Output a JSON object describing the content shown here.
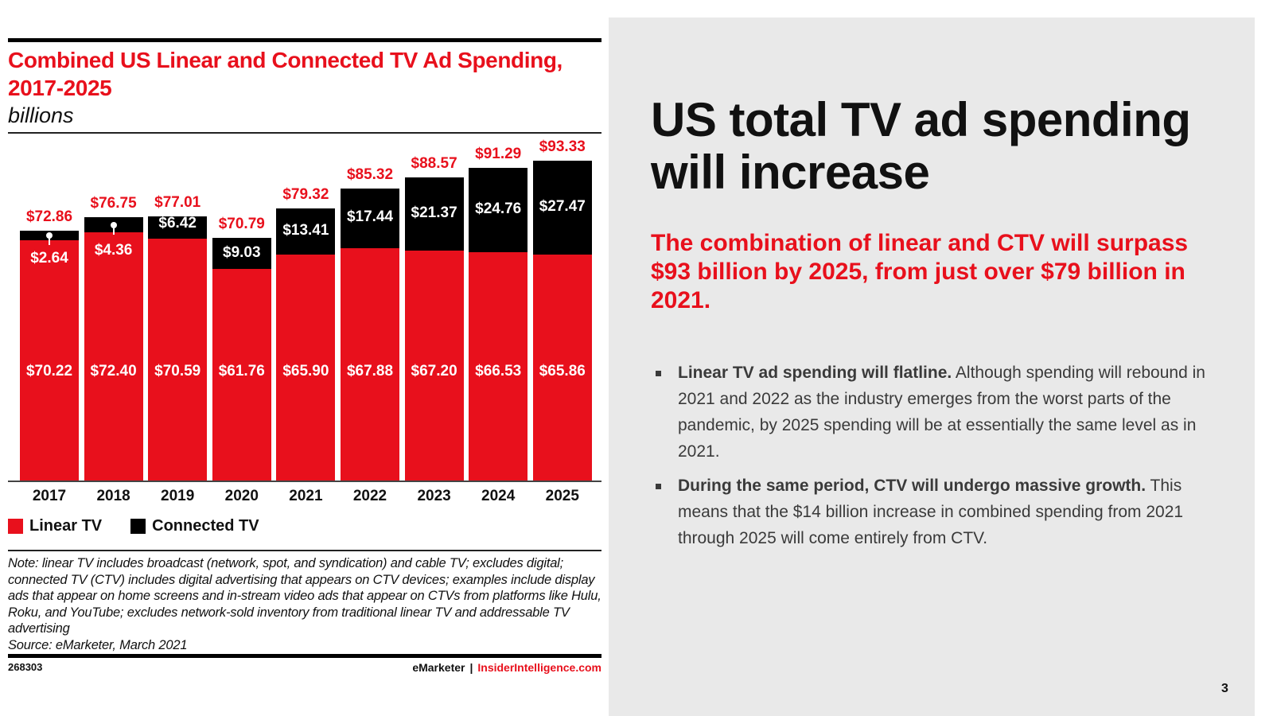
{
  "chart_data": {
    "type": "bar",
    "stacked": true,
    "title": "Combined US Linear and Connected TV Ad Spending, 2017-2025",
    "subtitle": "billions",
    "xlabel": "",
    "ylabel": "",
    "categories": [
      "2017",
      "2018",
      "2019",
      "2020",
      "2021",
      "2022",
      "2023",
      "2024",
      "2025"
    ],
    "series": [
      {
        "name": "Linear TV",
        "color": "#E8101C",
        "values": [
          70.22,
          72.4,
          70.59,
          61.76,
          65.9,
          67.88,
          67.2,
          66.53,
          65.86
        ],
        "labels": [
          "$70.22",
          "$72.40",
          "$70.59",
          "$61.76",
          "$65.90",
          "$67.88",
          "$67.20",
          "$66.53",
          "$65.86"
        ]
      },
      {
        "name": "Connected TV",
        "color": "#000000",
        "values": [
          2.64,
          4.36,
          6.42,
          9.03,
          13.41,
          17.44,
          21.37,
          24.76,
          27.47
        ],
        "labels": [
          "$2.64",
          "$4.36",
          "$6.42",
          "$9.03",
          "$13.41",
          "$17.44",
          "$21.37",
          "$24.76",
          "$27.47"
        ]
      }
    ],
    "totals": [
      72.86,
      76.75,
      77.01,
      70.79,
      79.32,
      85.32,
      88.57,
      91.29,
      93.33
    ],
    "total_labels": [
      "$72.86",
      "$76.75",
      "$77.01",
      "$70.79",
      "$79.32",
      "$85.32",
      "$88.57",
      "$91.29",
      "$93.33"
    ],
    "ylim": [
      0,
      93.33
    ],
    "grid": false,
    "legend_position": "bottom-left",
    "note": "Note: linear TV includes broadcast (network, spot, and syndication) and cable TV; excludes digital; connected TV (CTV) includes digital advertising that appears on CTV devices; examples include display ads that appear on home screens and in-stream video ads that appear on CTVs from platforms like Hulu, Roku, and YouTube; excludes network-sold inventory from traditional linear TV and addressable TV advertising",
    "source": "Source: eMarketer, March 2021"
  },
  "footer": {
    "chart_id": "268303",
    "brand": "eMarketer",
    "separator": "|",
    "site": "InsiderIntelligence.com"
  },
  "slide": {
    "headline": "US total TV ad spending will increase",
    "subhead": "The combination of linear and CTV will surpass $93 billion by 2025, from just over $79 billion in 2021.",
    "bullets": [
      {
        "bold": "Linear TV ad spending will flatline.",
        "text": " Although spending will rebound in 2021 and 2022 as the industry emerges from the worst parts of the pandemic, by 2025 spending will be at essentially the same level as in 2021."
      },
      {
        "bold": "During the same period, CTV will undergo massive growth.",
        "text": " This means that the $14 billion increase in combined spending from 2021 through 2025 will come entirely from CTV."
      }
    ],
    "page_number": "3"
  },
  "colors": {
    "accent": "#E8101C",
    "ctv": "#000000",
    "panel": "#E9E9E9"
  }
}
